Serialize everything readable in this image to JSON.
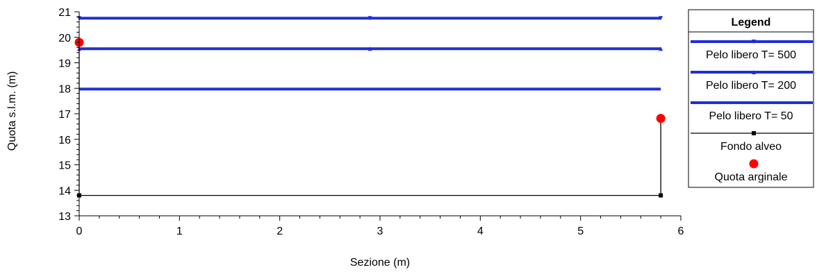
{
  "chart_data": {
    "type": "line",
    "xlabel": "Sezione (m)",
    "ylabel": "Quota s.l.m.  (m)",
    "xlim": [
      0,
      6
    ],
    "ylim": [
      13,
      21
    ],
    "xticks": [
      "0",
      "1",
      "2",
      "3",
      "4",
      "5",
      "6"
    ],
    "yticks": [
      "13",
      "14",
      "15",
      "16",
      "17",
      "18",
      "19",
      "20",
      "21"
    ],
    "grid": false,
    "legend": {
      "title": "Legend",
      "position": "right"
    },
    "series": [
      {
        "name": "Pelo libero T= 500",
        "kind": "line",
        "color": "#1f2fd6",
        "marker": "triangle-down",
        "x": [
          0,
          2.9,
          5.8
        ],
        "y": [
          20.75,
          20.75,
          20.75
        ]
      },
      {
        "name": "Pelo libero T= 200",
        "kind": "line",
        "color": "#1f2fd6",
        "marker": "triangle-up",
        "x": [
          0,
          2.9,
          5.8
        ],
        "y": [
          19.55,
          19.55,
          19.55
        ]
      },
      {
        "name": "Pelo libero T= 50",
        "kind": "line",
        "color": "#1f2fd6",
        "marker": "none",
        "x": [
          0,
          5.8
        ],
        "y": [
          17.97,
          17.97
        ]
      },
      {
        "name": "Fondo alveo",
        "kind": "line",
        "color": "#000000",
        "marker": "square",
        "x": [
          0,
          0,
          5.8,
          5.8
        ],
        "y": [
          19.8,
          13.8,
          13.8,
          16.82
        ]
      },
      {
        "name": "Quota arginale",
        "kind": "scatter",
        "color": "#ff0000",
        "marker": "circle",
        "x": [
          0,
          5.8
        ],
        "y": [
          19.8,
          16.82
        ]
      }
    ]
  }
}
